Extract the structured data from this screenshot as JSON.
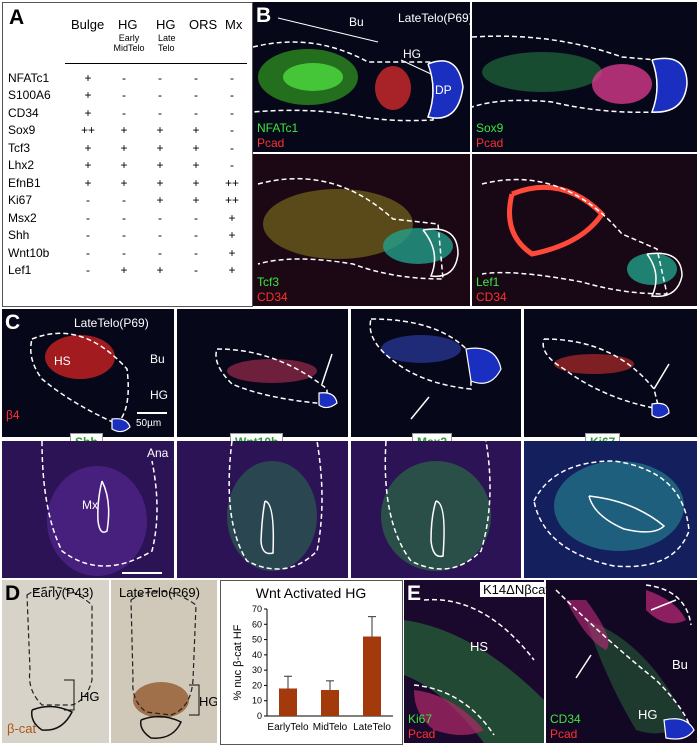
{
  "panel_a": {
    "letter": "A",
    "columns": [
      "Bulge",
      "HG",
      "HG",
      "ORS",
      "Mx"
    ],
    "col_sub": [
      "",
      "Early MidTelo",
      "Late Telo",
      "",
      ""
    ],
    "rows": [
      {
        "name": "NFATc1",
        "vals": [
          "+",
          "-",
          "-",
          "-",
          "-"
        ]
      },
      {
        "name": "S100A6",
        "vals": [
          "+",
          "-",
          "-",
          "-",
          "-"
        ]
      },
      {
        "name": "CD34",
        "vals": [
          "+",
          "-",
          "-",
          "-",
          "-"
        ]
      },
      {
        "name": "Sox9",
        "vals": [
          "++",
          "+",
          "+",
          "+",
          "-"
        ]
      },
      {
        "name": "Tcf3",
        "vals": [
          "+",
          "+",
          "+",
          "+",
          "-"
        ]
      },
      {
        "name": "Lhx2",
        "vals": [
          "+",
          "+",
          "+",
          "+",
          "-"
        ]
      },
      {
        "name": "EfnB1",
        "vals": [
          "+",
          "+",
          "+",
          "+",
          "++"
        ]
      },
      {
        "name": "Ki67",
        "vals": [
          "-",
          "-",
          "+",
          "+",
          "++"
        ]
      },
      {
        "name": "Msx2",
        "vals": [
          "-",
          "-",
          "-",
          "-",
          "+"
        ]
      },
      {
        "name": "Shh",
        "vals": [
          "-",
          "-",
          "-",
          "-",
          "+"
        ]
      },
      {
        "name": "Wnt10b",
        "vals": [
          "-",
          "-",
          "-",
          "-",
          "+"
        ]
      },
      {
        "name": "Lef1",
        "vals": [
          "-",
          "+",
          "+",
          "-",
          "+"
        ]
      }
    ]
  },
  "panel_b": {
    "letter": "B",
    "title": "LateTelo(P69)",
    "labels": {
      "bu": "Bu",
      "hg": "HG",
      "dp": "DP"
    },
    "sub1": {
      "green": "NFATc1",
      "red": "Pcad"
    },
    "sub2": {
      "green": "Sox9",
      "red": "Pcad"
    },
    "sub3": {
      "green": "Tcf3",
      "red": "CD34"
    },
    "sub4": {
      "green": "Lef1",
      "red": "CD34"
    }
  },
  "panel_c": {
    "letter": "C",
    "title": "LateTelo(P69)",
    "labels": {
      "bu": "Bu",
      "hs": "HS",
      "hg": "HG",
      "b4": "β4",
      "scale": "50µm",
      "ana": "Ana",
      "mx": "Mx"
    },
    "tags": [
      "Shh",
      "Wnt10b",
      "Msx2",
      "Ki67"
    ]
  },
  "panel_d": {
    "letter": "D",
    "early": "Early(P43)",
    "late": "LateTelo(P69)",
    "hg": "HG",
    "bcat": "β-cat"
  },
  "panel_e": {
    "letter": "E",
    "title": "K14ΔNβcat",
    "labels": {
      "hs": "HS",
      "bu": "Bu",
      "hg": "HG"
    },
    "left": {
      "green": "Ki67",
      "red": "Pcad"
    },
    "right": {
      "green": "CD34",
      "red": "Pcad"
    }
  },
  "chart_data": {
    "type": "bar",
    "title": "Wnt Activated HG",
    "ylabel": "% nuc β-cat HF",
    "categories": [
      "EarlyTelo",
      "MidTelo",
      "LateTelo"
    ],
    "values": [
      18,
      17,
      52
    ],
    "errors": [
      8,
      6,
      13
    ],
    "ylim": [
      0,
      70
    ],
    "yticks": [
      0,
      10,
      20,
      30,
      40,
      50,
      60,
      70
    ],
    "bar_color": "#a33a0b"
  }
}
